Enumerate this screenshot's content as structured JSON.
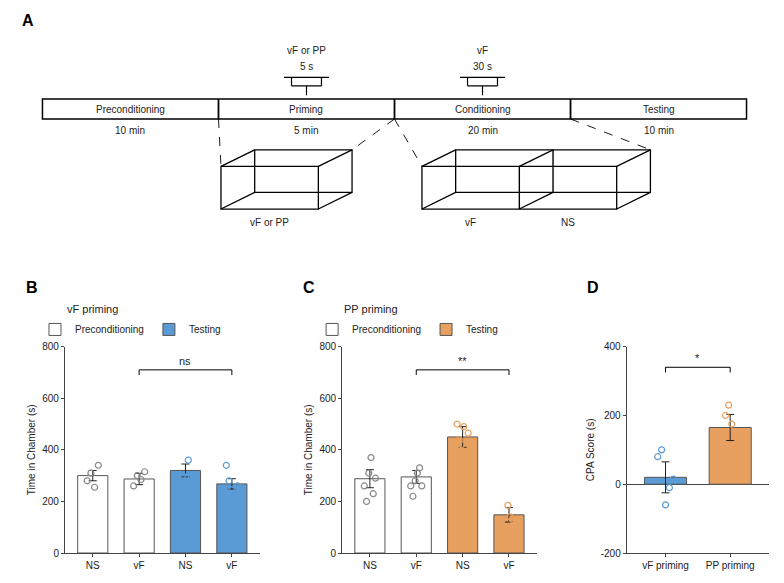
{
  "chart_data": [
    {
      "type": "timeline",
      "panel": "A",
      "phases": [
        "Preconditioning",
        "Priming",
        "Conditioning",
        "Testing"
      ],
      "times": [
        "10 min",
        "5 min",
        "20 min",
        "10 min"
      ],
      "stimuli": [
        {
          "phase": "Priming",
          "label": "vF or PP",
          "time": "5 s"
        },
        {
          "phase": "Conditioning",
          "label": "vF",
          "time": "30 s"
        }
      ],
      "chambers": [
        {
          "phase": "Priming",
          "labels": [
            "vF or PP"
          ]
        },
        {
          "phase": "Conditioning",
          "labels": [
            "vF",
            "NS"
          ]
        }
      ]
    },
    {
      "type": "bar",
      "panel": "B",
      "title": "vF priming",
      "categories": [
        "NS",
        "vF",
        "NS",
        "vF"
      ],
      "series": [
        {
          "name": "Preconditioning",
          "color": "#ffffff",
          "point_color": "#888888",
          "values": [
            300,
            287,
            null,
            null
          ],
          "errors": [
            20,
            22,
            null,
            null
          ],
          "points": [
            [
              280,
              310,
              255,
              340
            ],
            [
              260,
              300,
              285,
              315
            ],
            null,
            null
          ]
        },
        {
          "name": "Testing",
          "color": "#5b9bd5",
          "point_color": "#5b9bd5",
          "values": [
            null,
            null,
            320,
            268
          ],
          "errors": [
            null,
            null,
            25,
            20
          ],
          "points": [
            null,
            null,
            [
              280,
              300,
              260,
              360,
              290
            ],
            [
              340,
              280,
              245,
              225,
              260
            ]
          ]
        }
      ],
      "ylabel": "Time in Chamber (s)",
      "ylim": [
        0,
        800
      ],
      "yticks": [
        0,
        200,
        400,
        600,
        800
      ],
      "grid": false,
      "legend": "upper left",
      "significance": [
        {
          "text": "ns",
          "from": 1,
          "to": 3,
          "y": 710
        }
      ]
    },
    {
      "type": "bar",
      "panel": "C",
      "title": "PP priming",
      "categories": [
        "NS",
        "vF",
        "NS",
        "vF"
      ],
      "series": [
        {
          "name": "Preconditioning",
          "color": "#ffffff",
          "point_color": "#888888",
          "values": [
            288,
            295,
            null,
            null
          ],
          "errors": [
            35,
            25,
            null,
            null
          ],
          "points": [
            [
              260,
              200,
              310,
              370,
              230,
              290
            ],
            [
              260,
              220,
              280,
              310,
              330,
              260
            ],
            null,
            null
          ]
        },
        {
          "name": "Testing",
          "color": "#e8a060",
          "point_color": "#e8a060",
          "values": [
            null,
            null,
            450,
            148
          ],
          "errors": [
            null,
            null,
            40,
            28
          ],
          "points": [
            null,
            null,
            [
              500,
              440,
              420,
              490,
              390,
              465
            ],
            [
              100,
              80,
              185,
              140,
              130,
              105
            ]
          ]
        }
      ],
      "ylabel": "Time in Chamber (s)",
      "ylim": [
        0,
        800
      ],
      "yticks": [
        0,
        200,
        400,
        600,
        800
      ],
      "grid": false,
      "legend": "upper left",
      "significance": [
        {
          "text": "**",
          "from": 1,
          "to": 3,
          "y": 710
        }
      ]
    },
    {
      "type": "bar",
      "panel": "D",
      "categories": [
        "vF priming",
        "PP priming"
      ],
      "values": [
        20,
        165
      ],
      "errors": [
        45,
        38
      ],
      "colors": [
        "#5b9bd5",
        "#e8a060"
      ],
      "points": [
        [
          80,
          100,
          -60,
          -10,
          15
        ],
        [
          80,
          200,
          230,
          175,
          100,
          150
        ]
      ],
      "point_colors": [
        "#5b9bd5",
        "#e8a060"
      ],
      "ylabel": "CPA Score (s)",
      "ylim": [
        -200,
        400
      ],
      "yticks": [
        -200,
        0,
        200,
        400
      ],
      "grid": false,
      "significance": [
        {
          "text": "*",
          "from": 0,
          "to": 1,
          "y": 340
        }
      ]
    }
  ]
}
